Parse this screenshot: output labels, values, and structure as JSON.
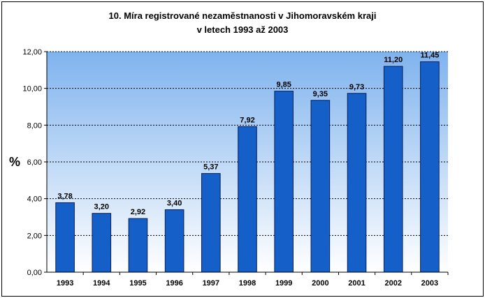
{
  "chart_data": {
    "type": "bar",
    "title_lines": [
      "10. Míra registrované nezaměstnanosti v Jihomoravském kraji",
      "v letech 1993 až 2003"
    ],
    "ylabel": "%",
    "xlabel": "",
    "categories": [
      "1993",
      "1994",
      "1995",
      "1996",
      "1997",
      "1998",
      "1999",
      "2000",
      "2001",
      "2002",
      "2003"
    ],
    "values": [
      3.78,
      3.2,
      2.92,
      3.4,
      5.37,
      7.92,
      9.85,
      9.35,
      9.73,
      11.2,
      11.45
    ],
    "value_labels": [
      "3,78",
      "3,20",
      "2,92",
      "3,40",
      "5,37",
      "7,92",
      "9,85",
      "9,35",
      "9,73",
      "11,20",
      "11,45"
    ],
    "ylim": [
      0,
      12
    ],
    "yticks": [
      0,
      2,
      4,
      6,
      8,
      10,
      12
    ],
    "ytick_labels": [
      "0,00",
      "2,00",
      "4,00",
      "6,00",
      "8,00",
      "10,00",
      "12,00"
    ],
    "grid": true,
    "grid_style": "dashed",
    "bar_color": "#1560C8",
    "bar_edge_color": "#0A1E5A",
    "plot_gradient": [
      "#7FB3EE",
      "#FFFFFF"
    ]
  }
}
